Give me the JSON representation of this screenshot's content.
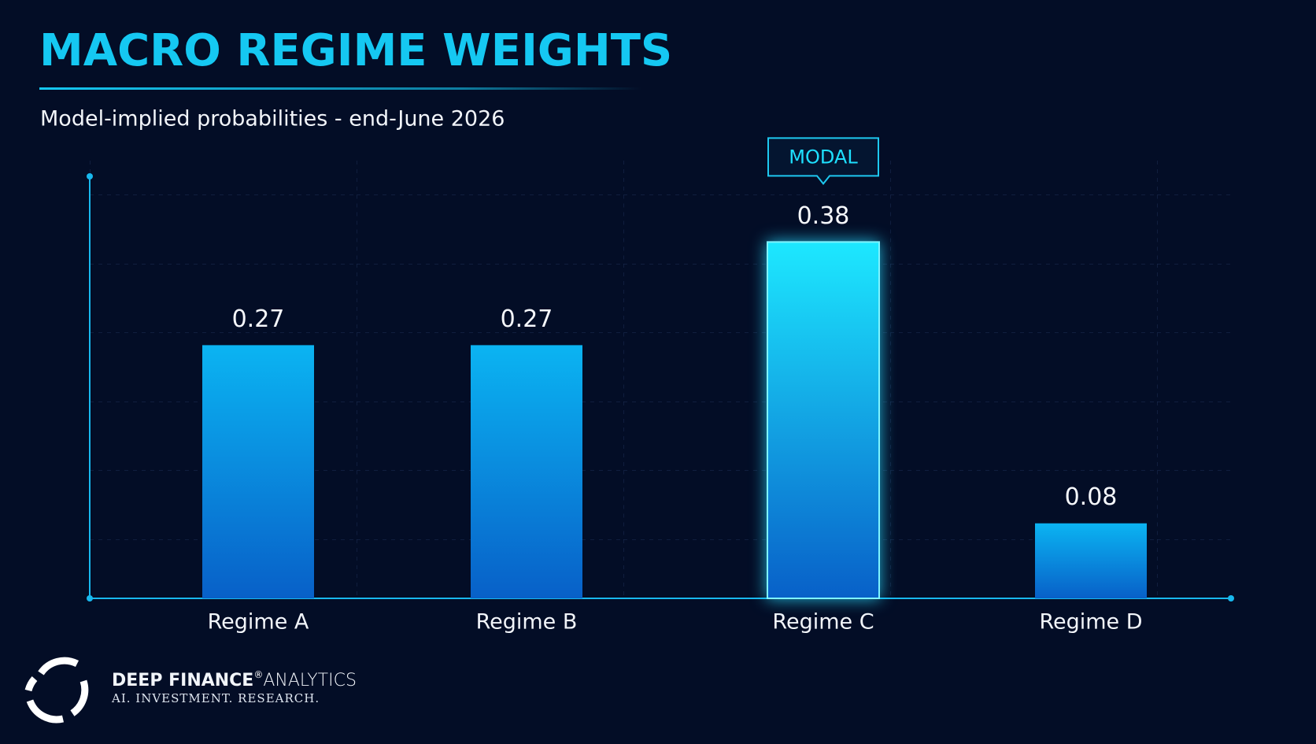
{
  "chart_data": {
    "type": "bar",
    "title": "MACRO REGIME WEIGHTS",
    "subtitle": "Model-implied probabilities - end-June 2026",
    "categories": [
      "Regime A",
      "Regime B",
      "Regime C",
      "Regime D"
    ],
    "values": [
      0.27,
      0.27,
      0.38,
      0.08
    ],
    "colors": [
      "#0bb4f2",
      "#0bb4f2",
      "#1de8ff",
      "#0bb4f2"
    ],
    "ylim": [
      0,
      0.45
    ],
    "annotations": [
      {
        "text": "MODAL",
        "category": "Regime C"
      }
    ]
  },
  "brand": {
    "name": "DEEP FINANCE",
    "mark": "®",
    "suffix": "ANALYTICS",
    "tagline": "AI. INVESTMENT. RESEARCH."
  }
}
